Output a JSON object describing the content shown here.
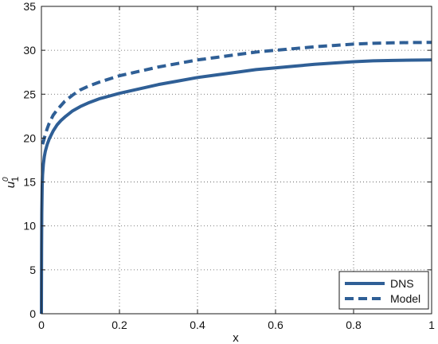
{
  "chart_data": {
    "type": "line",
    "title": "",
    "xlabel": "x",
    "ylabel": "u",
    "ylabel_superscript": "0",
    "ylabel_subscript": "1",
    "xlim": [
      0,
      1
    ],
    "ylim": [
      0,
      35
    ],
    "x_ticks": [
      0,
      0.2,
      0.4,
      0.6,
      0.8,
      1
    ],
    "x_tick_labels": [
      "0",
      "0.2",
      "0.4",
      "0.6",
      "0.8",
      "1"
    ],
    "y_ticks": [
      0,
      5,
      10,
      15,
      20,
      25,
      30,
      35
    ],
    "y_tick_labels": [
      "0",
      "5",
      "10",
      "15",
      "20",
      "25",
      "30",
      "35"
    ],
    "grid": true,
    "grid_style": "dotted",
    "legend_position": "bottom-right",
    "series": [
      {
        "name": "DNS",
        "style": "solid",
        "color": "#2f5f96",
        "x": [
          0,
          0.0005,
          0.001,
          0.002,
          0.003,
          0.005,
          0.0075,
          0.01,
          0.015,
          0.02,
          0.03,
          0.04,
          0.05,
          0.06,
          0.08,
          0.1,
          0.12,
          0.15,
          0.2,
          0.25,
          0.3,
          0.35,
          0.4,
          0.45,
          0.5,
          0.55,
          0.6,
          0.65,
          0.7,
          0.75,
          0.8,
          0.85,
          0.9,
          0.95,
          1.0
        ],
        "y": [
          0,
          7.5,
          11.5,
          14.5,
          15.8,
          17.0,
          17.9,
          18.5,
          19.3,
          19.9,
          20.8,
          21.5,
          22.0,
          22.4,
          23.1,
          23.6,
          24.0,
          24.5,
          25.1,
          25.6,
          26.1,
          26.5,
          26.9,
          27.2,
          27.5,
          27.8,
          28.0,
          28.2,
          28.4,
          28.55,
          28.7,
          28.8,
          28.85,
          28.88,
          28.9
        ]
      },
      {
        "name": "Model",
        "style": "dashed",
        "color": "#2f5f96",
        "x": [
          0.003,
          0.005,
          0.0075,
          0.01,
          0.015,
          0.02,
          0.03,
          0.04,
          0.05,
          0.06,
          0.08,
          0.1,
          0.12,
          0.15,
          0.2,
          0.25,
          0.3,
          0.35,
          0.4,
          0.45,
          0.5,
          0.55,
          0.6,
          0.65,
          0.7,
          0.75,
          0.8,
          0.85,
          0.9,
          0.95,
          1.0
        ],
        "y": [
          19.3,
          19.6,
          20.0,
          20.4,
          21.1,
          21.7,
          22.6,
          23.2,
          23.7,
          24.2,
          24.9,
          25.5,
          25.9,
          26.4,
          27.1,
          27.6,
          28.1,
          28.5,
          28.9,
          29.2,
          29.5,
          29.8,
          30.0,
          30.2,
          30.4,
          30.55,
          30.7,
          30.8,
          30.85,
          30.88,
          30.9
        ]
      }
    ]
  }
}
